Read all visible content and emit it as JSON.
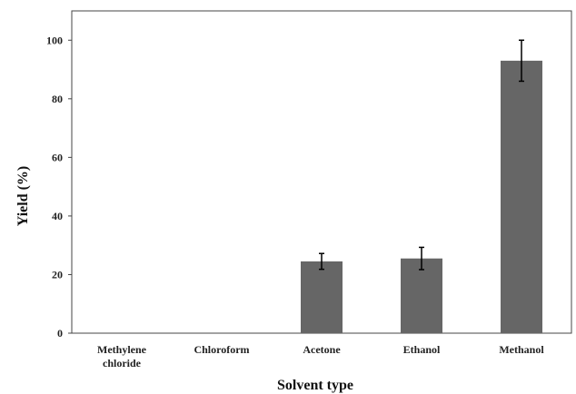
{
  "chart_data": {
    "type": "bar",
    "title": "",
    "xlabel": "Solvent type",
    "ylabel": "Yield (%)",
    "ylim": [
      0,
      110
    ],
    "yticks": [
      0,
      20,
      40,
      60,
      80,
      100
    ],
    "grid": false,
    "categories": [
      [
        "Methylene",
        "chloride"
      ],
      [
        "Chloroform"
      ],
      [
        "Acetone"
      ],
      [
        "Ethanol"
      ],
      [
        "Methanol"
      ]
    ],
    "values": [
      0,
      0,
      24.5,
      25.5,
      93
    ],
    "errors": [
      0,
      0,
      2.7,
      3.8,
      7
    ],
    "bar_color": "#666666"
  }
}
